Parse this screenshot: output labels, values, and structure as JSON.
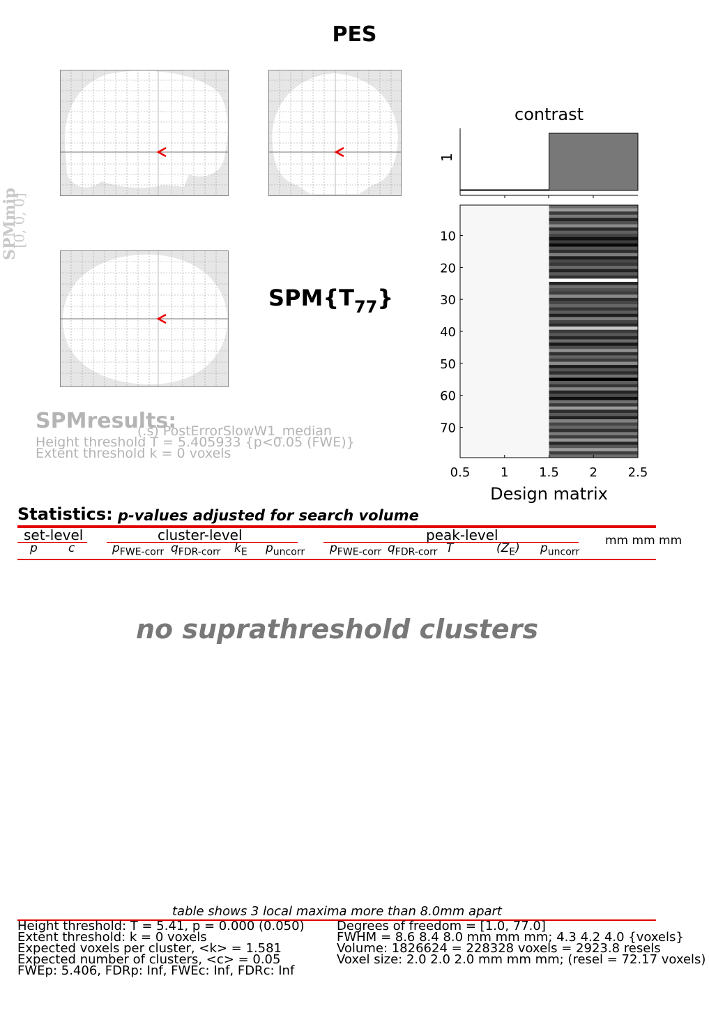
{
  "page": {
    "title": "PES"
  },
  "mip": {
    "label": "SPMmip",
    "coords": "[0, 0, 0]"
  },
  "stat_label": {
    "base": "SPM{T",
    "sub": "77",
    "close": "}"
  },
  "results_text": {
    "heading": "SPMresults:",
    "contrast_name": "(.s) PostErrorSlowW1_median",
    "height_line": "Height threshold T = 5.405933  {p<0.05 (FWE)}",
    "extent_line": "Extent threshold k = 0 voxels"
  },
  "design": {
    "contrast_title": "contrast",
    "contrast_ytick": "1",
    "xlabel": "Design matrix",
    "xticks": [
      "0.5",
      "1",
      "1.5",
      "2",
      "2.5"
    ],
    "yticks": [
      "10",
      "20",
      "30",
      "40",
      "50",
      "60",
      "70"
    ],
    "contrast_weights": [
      0,
      1
    ],
    "rows": 79,
    "col2_shades": [
      "#6c6c6c",
      "#9a9a9a",
      "#3a3a3a",
      "#7a7a7a",
      "#222",
      "#505050",
      "#8c8c8c",
      "#2a2a2a",
      "#606060",
      "#444",
      "#111",
      "#3c3c3c",
      "#0a0a0a",
      "#555",
      "#2e2e2e",
      "#7e7e7e",
      "#1c1c1c",
      "#4a4a4a",
      "#383838",
      "#6a6a6a",
      "#222",
      "#5a5a5a",
      "#303030",
      "#ffffff",
      "#262626",
      "#6e6e6e",
      "#505050",
      "#3e3e3e",
      "#8a8a8a",
      "#2c2c2c",
      "#484848",
      "#666",
      "#343434",
      "#5c5c5c",
      "#1e1e1e",
      "#7c7c7c",
      "#444",
      "#2a2a2a",
      "#c8c8c8",
      "#3a3a3a",
      "#585858",
      "#262626",
      "#6c6c6c",
      "#181818",
      "#4e4e4e",
      "#909090",
      "#303030",
      "#646464",
      "#3c3c3c",
      "#8c8c8c",
      "#1a1a1a",
      "#545454",
      "#2e2e2e",
      "#747474",
      "#000000",
      "#5e5e5e",
      "#363636",
      "#868686",
      "#242424",
      "#4c4c4c",
      "#0e0e0e",
      "#707070",
      "#3a3a3a",
      "#9c9c9c",
      "#2c2c2c",
      "#5a5a5a",
      "#202020",
      "#828282",
      "#464646",
      "#666666",
      "#303030",
      "#7a7a7a",
      "#3e3e3e",
      "#969696",
      "#262626",
      "#585858",
      "#9e9e9e",
      "#404040",
      "#6e6e6e"
    ]
  },
  "statistics": {
    "title": "Statistics:",
    "subtitle": "p-values adjusted for search volume",
    "groups": [
      "set-level",
      "cluster-level",
      "peak-level"
    ],
    "coords_header": "mm mm mm",
    "set_cols": [
      "p",
      "c"
    ],
    "cluster_cols": [
      {
        "main": "p",
        "sub": "FWE-corr"
      },
      {
        "main": "q",
        "sub": "FDR-corr"
      },
      {
        "main": "k",
        "sub": "E"
      },
      {
        "main": "p",
        "sub": "uncorr"
      }
    ],
    "peak_cols": [
      {
        "main": "p",
        "sub": "FWE-corr"
      },
      {
        "main": "q",
        "sub": "FDR-corr"
      },
      {
        "main": "T",
        "sub": ""
      },
      {
        "main": "(Z",
        "sub": "E",
        "close": ")"
      },
      {
        "main": "p",
        "sub": "uncorr"
      }
    ],
    "empty_message": "no suprathreshold clusters"
  },
  "footer": {
    "caption": "table shows 3 local maxima more than 8.0mm apart",
    "left": [
      "Height threshold: T = 5.41, p = 0.000 (0.050)",
      "Extent threshold: k = 0 voxels",
      "Expected voxels per cluster, <k> = 1.581",
      "Expected number of clusters, <c> = 0.05",
      "FWEp: 5.406, FDRp: Inf, FWEc: Inf, FDRc: Inf"
    ],
    "right": [
      "Degrees of freedom = [1.0, 77.0]",
      "FWHM = 8.6 8.4 8.0 mm mm mm; 4.3 4.2 4.0 {voxels}",
      "Volume: 1826624 = 228328 voxels = 2923.8 resels",
      "Voxel size: 2.0 2.0 2.0 mm mm mm; (resel = 72.17 voxels)"
    ]
  }
}
